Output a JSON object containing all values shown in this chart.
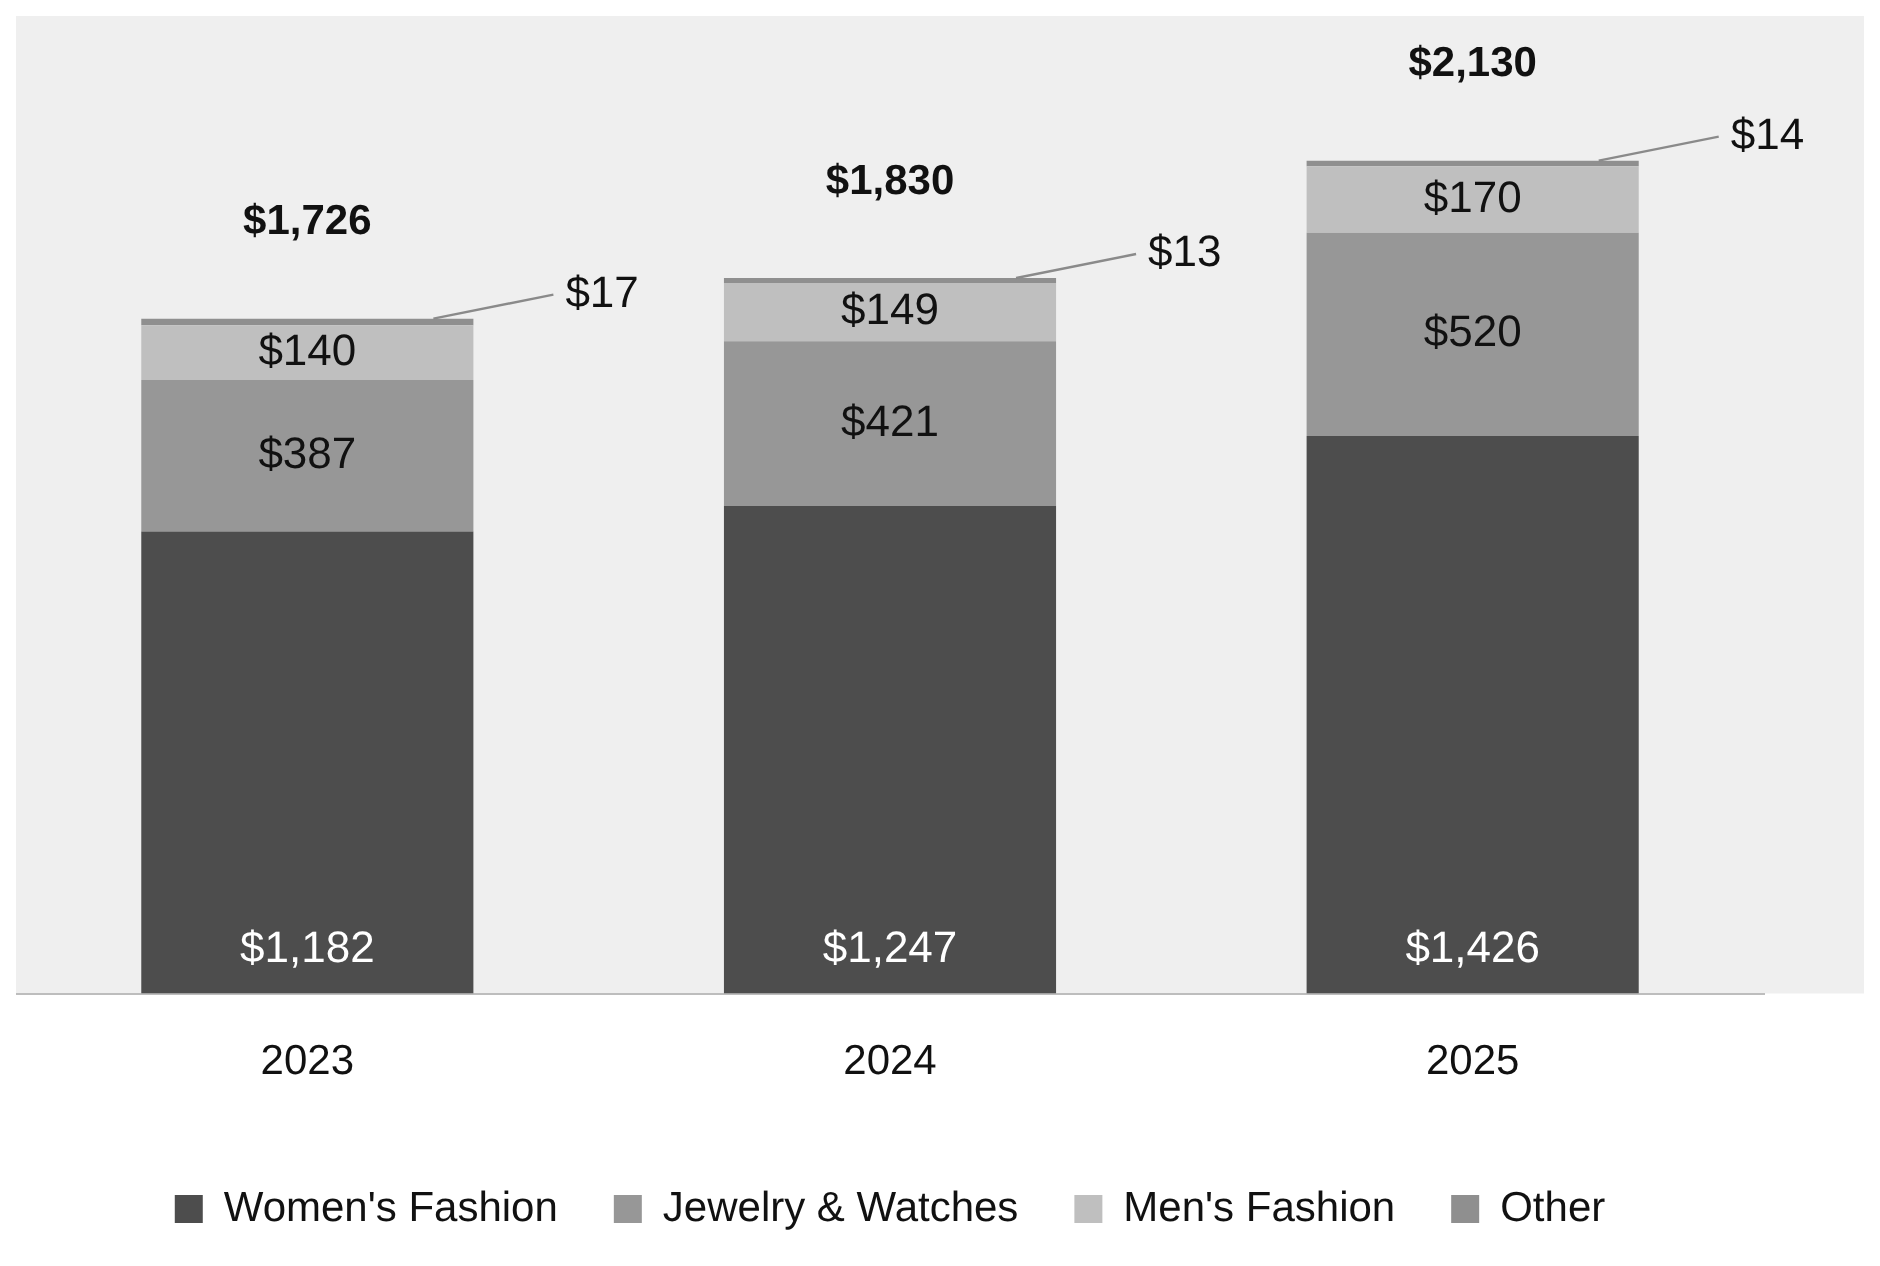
{
  "chart_data": {
    "type": "bar",
    "stacked": true,
    "categories": [
      "2023",
      "2024",
      "2025"
    ],
    "series": [
      {
        "name": "Women's Fashion",
        "color": "#4d4d4d",
        "values": [
          1182,
          1247,
          1426
        ],
        "value_labels": [
          "$1,182",
          "$1,247",
          "$1,426"
        ]
      },
      {
        "name": "Jewelry & Watches",
        "color": "#979797",
        "values": [
          387,
          421,
          520
        ],
        "value_labels": [
          "$387",
          "$421",
          "$520"
        ]
      },
      {
        "name": "Men's Fashion",
        "color": "#bfbfbf",
        "values": [
          140,
          149,
          170
        ],
        "value_labels": [
          "$140",
          "$149",
          "$170"
        ]
      },
      {
        "name": "Other",
        "color": "#8f8f8f",
        "values": [
          17,
          13,
          14
        ],
        "value_labels": [
          "$17",
          "$13",
          "$14"
        ]
      }
    ],
    "totals": [
      "$1,726",
      "$1,830",
      "$2,130"
    ],
    "legend": "bottom",
    "grid": false
  }
}
